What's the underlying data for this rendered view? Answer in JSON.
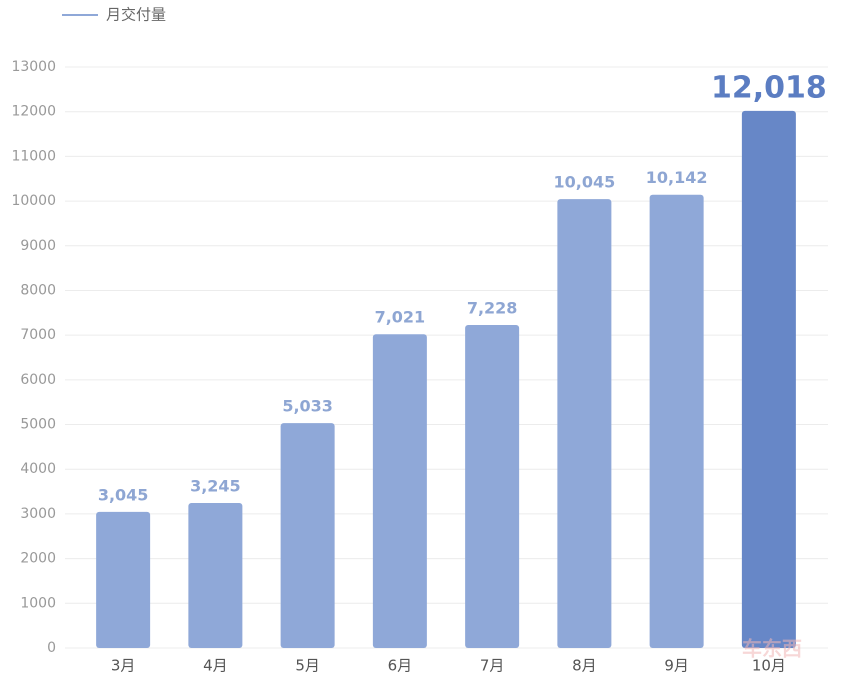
{
  "chart_data": {
    "type": "bar",
    "categories": [
      "3月",
      "4月",
      "5月",
      "6月",
      "7月",
      "8月",
      "9月",
      "10月"
    ],
    "series": [
      {
        "name": "月交付量",
        "color": "#8fa8d8",
        "colors": [
          "#8fa8d8",
          "#8fa8d8",
          "#8fa8d8",
          "#8fa8d8",
          "#8fa8d8",
          "#8fa8d8",
          "#8fa8d8",
          "#6787c7"
        ],
        "values": [
          3045,
          3245,
          5033,
          7021,
          7228,
          10045,
          10142,
          12018
        ],
        "value_labels": [
          "3,045",
          "3,245",
          "5,033",
          "7,021",
          "7,228",
          "10,045",
          "10,142",
          "12,018"
        ]
      }
    ],
    "ylim": [
      0,
      13000
    ],
    "yticks": [
      0,
      1000,
      2000,
      3000,
      4000,
      5000,
      6000,
      7000,
      8000,
      9000,
      10000,
      11000,
      12000,
      13000
    ],
    "grid": true,
    "legend": "top-left",
    "watermark": "车东西"
  }
}
